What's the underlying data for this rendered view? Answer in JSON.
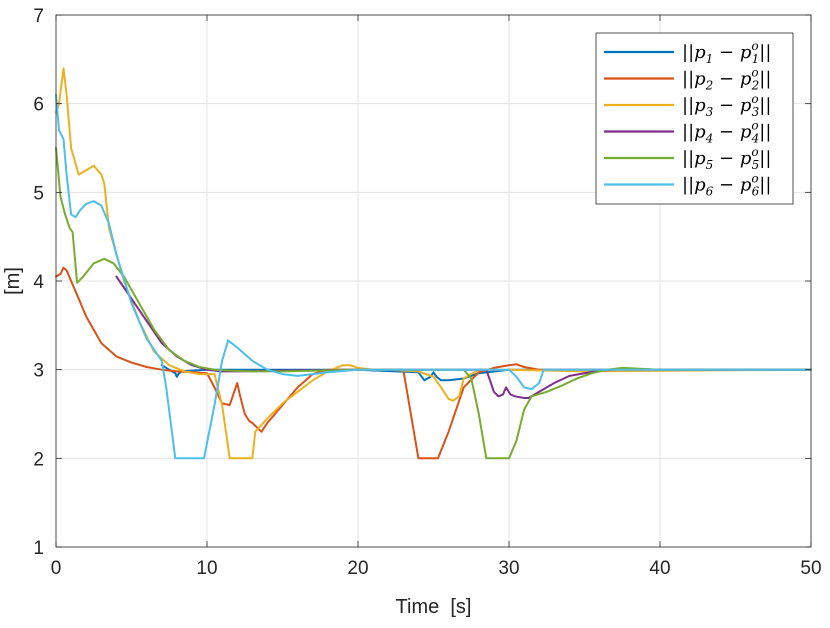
{
  "chart_data": {
    "type": "line",
    "title": "",
    "xlabel": "Time  [s]",
    "ylabel": "[m]",
    "xlim": [
      0,
      50
    ],
    "ylim": [
      1,
      7
    ],
    "xticks": [
      0,
      10,
      20,
      30,
      40,
      50
    ],
    "yticks": [
      1,
      2,
      3,
      4,
      5,
      6,
      7
    ],
    "xtick_labels": [
      "0",
      "10",
      "20",
      "30",
      "40",
      "50"
    ],
    "ytick_labels": [
      "1",
      "2",
      "3",
      "4",
      "5",
      "6",
      "7"
    ],
    "grid": true,
    "legend_position": "top-right",
    "series": [
      {
        "name": "||p1 - p1o||",
        "legend": {
          "open": "||",
          "p": "p",
          "i": "1",
          "minus": " − ",
          "sup": "o",
          "close": "||"
        },
        "color": "#0072BD",
        "x": [
          7.0,
          7.5,
          7.9,
          8.0,
          8.1,
          8.3,
          9.0,
          10.0,
          12.0,
          15.0,
          20.0,
          24.0,
          24.4,
          24.8,
          25.0,
          25.2,
          25.5,
          26.0,
          27.0,
          28.0,
          30.0,
          35.0,
          50.0
        ],
        "y": [
          3.05,
          3.0,
          2.96,
          2.92,
          2.95,
          2.98,
          2.99,
          3.0,
          3.0,
          3.0,
          3.0,
          2.97,
          2.88,
          2.92,
          2.97,
          2.92,
          2.88,
          2.88,
          2.9,
          2.96,
          3.0,
          3.0,
          3.0
        ]
      },
      {
        "name": "||p2 - p2o||",
        "legend": {
          "open": "||",
          "p": "p",
          "i": "2",
          "minus": " − ",
          "sup": "o",
          "close": "||"
        },
        "color": "#D95319",
        "x": [
          0.0,
          0.3,
          0.5,
          0.7,
          1.0,
          1.5,
          2.0,
          3.0,
          4.0,
          5.0,
          6.0,
          7.0,
          8.0,
          9.0,
          10.0,
          10.5,
          11.0,
          11.5,
          12.0,
          12.2,
          12.5,
          12.8,
          13.0,
          13.3,
          13.6,
          14.0,
          15.0,
          16.0,
          17.0,
          18.0,
          20.0,
          22.0,
          23.0,
          24.0,
          25.0,
          25.3,
          26.0,
          27.0,
          28.0,
          29.0,
          30.0,
          30.5,
          31.0,
          32.0,
          33.0,
          40.0,
          50.0
        ],
        "y": [
          4.05,
          4.08,
          4.15,
          4.12,
          4.0,
          3.8,
          3.6,
          3.3,
          3.15,
          3.08,
          3.03,
          3.0,
          2.98,
          2.97,
          2.96,
          2.8,
          2.62,
          2.6,
          2.85,
          2.7,
          2.5,
          2.42,
          2.4,
          2.35,
          2.3,
          2.4,
          2.6,
          2.8,
          2.95,
          3.0,
          3.0,
          3.0,
          3.0,
          2.0,
          2.0,
          2.0,
          2.3,
          2.8,
          2.97,
          3.02,
          3.05,
          3.06,
          3.03,
          3.0,
          3.0,
          3.0,
          3.0
        ]
      },
      {
        "name": "||p3 - p3o||",
        "legend": {
          "open": "||",
          "p": "p",
          "i": "3",
          "minus": " − ",
          "sup": "o",
          "close": "||"
        },
        "color": "#EDB120",
        "x": [
          0.0,
          0.2,
          0.5,
          0.7,
          1.0,
          1.5,
          2.0,
          2.5,
          3.0,
          3.2,
          3.5,
          4.5,
          5.5,
          6.5,
          7.5,
          8.5,
          9.5,
          10.5,
          11.0,
          11.5,
          13.0,
          13.2,
          14.0,
          15.0,
          16.0,
          17.0,
          18.0,
          19.0,
          19.5,
          20.0,
          21.0,
          22.0,
          24.0,
          25.0,
          25.5,
          26.0,
          26.3,
          26.7,
          27.0,
          28.0,
          30.0,
          35.0,
          50.0
        ],
        "y": [
          5.9,
          6.0,
          6.4,
          6.1,
          5.5,
          5.2,
          5.25,
          5.3,
          5.2,
          5.1,
          4.6,
          4.0,
          3.55,
          3.2,
          3.05,
          2.98,
          2.95,
          2.95,
          2.6,
          2.0,
          2.0,
          2.3,
          2.45,
          2.62,
          2.75,
          2.88,
          2.98,
          3.05,
          3.05,
          3.02,
          3.0,
          3.0,
          2.98,
          2.92,
          2.8,
          2.67,
          2.65,
          2.7,
          2.9,
          3.0,
          3.0,
          2.98,
          3.0
        ]
      },
      {
        "name": "||p4 - p4o||",
        "legend": {
          "open": "||",
          "p": "p",
          "i": "4",
          "minus": " − ",
          "sup": "o",
          "close": "||"
        },
        "color": "#7E2F8E",
        "x": [
          4.0,
          5.0,
          6.0,
          7.0,
          8.0,
          9.0,
          10.0,
          11.0,
          12.0,
          15.0,
          20.0,
          25.0,
          28.5,
          28.8,
          29.0,
          29.3,
          29.6,
          29.8,
          30.1,
          30.4,
          31.0,
          31.3,
          32.0,
          33.0,
          34.0,
          36.0,
          38.0,
          40.0,
          45.0,
          50.0
        ],
        "y": [
          4.05,
          3.8,
          3.55,
          3.3,
          3.15,
          3.05,
          3.0,
          2.98,
          2.98,
          2.99,
          3.0,
          3.0,
          3.0,
          2.85,
          2.75,
          2.7,
          2.72,
          2.8,
          2.72,
          2.7,
          2.68,
          2.68,
          2.75,
          2.85,
          2.93,
          2.99,
          3.01,
          3.0,
          3.0,
          3.0
        ]
      },
      {
        "name": "||p5 - p5o||",
        "legend": {
          "open": "||",
          "p": "p",
          "i": "5",
          "minus": " − ",
          "sup": "o",
          "close": "||"
        },
        "color": "#77AC30",
        "x": [
          0.0,
          0.3,
          0.6,
          0.9,
          1.1,
          1.4,
          1.8,
          2.5,
          3.2,
          3.8,
          4.5,
          5.5,
          6.5,
          7.5,
          8.5,
          9.5,
          10.5,
          11.5,
          13.0,
          15.0,
          20.0,
          25.0,
          27.0,
          27.5,
          28.0,
          28.5,
          29.0,
          30.0,
          30.5,
          31.0,
          31.5,
          32.5,
          33.5,
          34.5,
          35.5,
          36.5,
          37.5,
          40.0,
          50.0
        ],
        "y": [
          5.5,
          4.95,
          4.75,
          4.6,
          4.55,
          3.98,
          4.05,
          4.2,
          4.25,
          4.2,
          4.05,
          3.75,
          3.45,
          3.22,
          3.1,
          3.03,
          3.0,
          2.99,
          2.98,
          2.98,
          3.0,
          3.0,
          3.0,
          2.9,
          2.5,
          2.0,
          2.0,
          2.0,
          2.2,
          2.55,
          2.7,
          2.75,
          2.82,
          2.9,
          2.96,
          3.0,
          3.02,
          3.0,
          3.0
        ]
      },
      {
        "name": "||p6 - p6o||",
        "legend": {
          "open": "||",
          "p": "p",
          "i": "6",
          "minus": " − ",
          "sup": "o",
          "close": "||"
        },
        "color": "#4DBEEE",
        "x": [
          0.0,
          0.2,
          0.5,
          0.7,
          1.0,
          1.3,
          1.6,
          2.0,
          2.5,
          3.0,
          3.5,
          4.0,
          5.0,
          6.0,
          7.0,
          7.3,
          7.9,
          8.5,
          9.0,
          9.8,
          10.5,
          11.0,
          11.4,
          12.0,
          13.0,
          14.0,
          15.0,
          16.0,
          17.0,
          18.0,
          20.0,
          25.0,
          30.0,
          30.5,
          31.0,
          31.5,
          32.0,
          32.3,
          33.0,
          35.0,
          40.0,
          50.0
        ],
        "y": [
          6.1,
          5.7,
          5.6,
          5.2,
          4.75,
          4.72,
          4.8,
          4.87,
          4.9,
          4.85,
          4.65,
          4.3,
          3.75,
          3.35,
          3.1,
          2.8,
          2.0,
          2.0,
          2.0,
          2.0,
          2.6,
          3.1,
          3.33,
          3.25,
          3.1,
          3.0,
          2.95,
          2.93,
          2.95,
          2.97,
          3.0,
          3.0,
          3.0,
          2.92,
          2.8,
          2.78,
          2.85,
          3.0,
          3.0,
          3.0,
          3.0,
          3.0
        ]
      }
    ]
  }
}
